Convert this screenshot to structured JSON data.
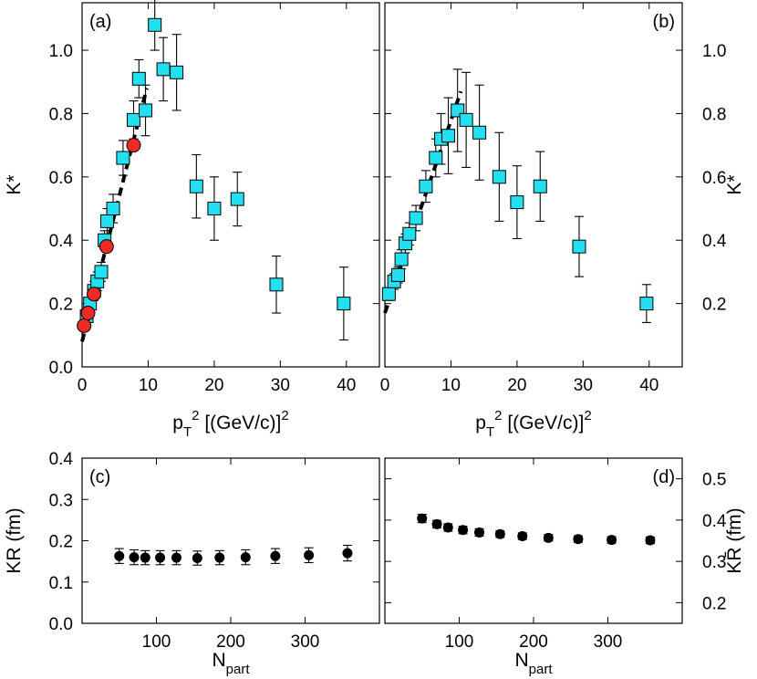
{
  "chart_data": [
    {
      "type": "scatter",
      "panel_label": "(a)",
      "xlabel_main": "p",
      "xlabel_sub": "T",
      "xlabel_sup": "2",
      "xlabel_rest": " [(GeV/c)]",
      "xlabel_sup2": "2",
      "ylabel": "K*",
      "xlim": [
        0,
        45
      ],
      "ylim": [
        0,
        1.15
      ],
      "xticks": [
        0,
        10,
        20,
        30,
        40
      ],
      "yticks": [
        0.0,
        0.2,
        0.4,
        0.6,
        0.8,
        1.0
      ],
      "ytick_labels": [
        "0.0",
        "0.2",
        "0.4",
        "0.6",
        "0.8",
        "1.0"
      ],
      "series": [
        {
          "name": "squares",
          "marker": "square",
          "color": "#22e0f0",
          "points": [
            {
              "x": 0.7,
              "y": 0.16,
              "err": 0.02
            },
            {
              "x": 1.2,
              "y": 0.2,
              "err": 0.02
            },
            {
              "x": 1.8,
              "y": 0.24,
              "err": 0.03
            },
            {
              "x": 2.3,
              "y": 0.27,
              "err": 0.03
            },
            {
              "x": 2.9,
              "y": 0.3,
              "err": 0.03
            },
            {
              "x": 3.4,
              "y": 0.4,
              "err": 0.03
            },
            {
              "x": 3.8,
              "y": 0.46,
              "err": 0.04
            },
            {
              "x": 4.7,
              "y": 0.5,
              "err": 0.045
            },
            {
              "x": 6.2,
              "y": 0.66,
              "err": 0.055
            },
            {
              "x": 7.8,
              "y": 0.78,
              "err": 0.06
            },
            {
              "x": 8.6,
              "y": 0.91,
              "err": 0.06
            },
            {
              "x": 9.6,
              "y": 0.81,
              "err": 0.08
            },
            {
              "x": 11.0,
              "y": 1.08,
              "err": 0.08
            },
            {
              "x": 12.3,
              "y": 0.94,
              "err": 0.1
            },
            {
              "x": 14.3,
              "y": 0.93,
              "err": 0.12
            },
            {
              "x": 17.3,
              "y": 0.57,
              "err": 0.1
            },
            {
              "x": 20.0,
              "y": 0.5,
              "err": 0.1
            },
            {
              "x": 23.5,
              "y": 0.53,
              "err": 0.085
            },
            {
              "x": 29.4,
              "y": 0.26,
              "err": 0.09
            },
            {
              "x": 39.6,
              "y": 0.2,
              "err": 0.115
            }
          ]
        },
        {
          "name": "circles",
          "marker": "circle",
          "color": "#ee2a24",
          "points": [
            {
              "x": 0.3,
              "y": 0.13,
              "err": 0
            },
            {
              "x": 0.9,
              "y": 0.17,
              "err": 0
            },
            {
              "x": 1.8,
              "y": 0.23,
              "err": 0
            },
            {
              "x": 3.7,
              "y": 0.38,
              "err": 0
            },
            {
              "x": 7.8,
              "y": 0.7,
              "err": 0
            }
          ]
        }
      ],
      "fit_line": {
        "x": [
          0,
          9.8
        ],
        "y": [
          0.08,
          0.88
        ]
      }
    },
    {
      "type": "scatter",
      "panel_label": "(b)",
      "xlabel_main": "p",
      "xlabel_sub": "T",
      "xlabel_sup": "2",
      "xlabel_rest": " [(GeV/c)]",
      "xlabel_sup2": "2",
      "ylabel": "K*",
      "xlim": [
        0,
        45
      ],
      "ylim": [
        0,
        1.15
      ],
      "xticks": [
        0,
        10,
        20,
        30,
        40
      ],
      "yticks": [
        0.2,
        0.4,
        0.6,
        0.8,
        1.0
      ],
      "ytick_labels": [
        "0.2",
        "0.4",
        "0.6",
        "0.8",
        "1.0"
      ],
      "series": [
        {
          "name": "squares",
          "marker": "square",
          "color": "#22e0f0",
          "points": [
            {
              "x": 0.6,
              "y": 0.23,
              "err": 0.02
            },
            {
              "x": 1.4,
              "y": 0.27,
              "err": 0.025
            },
            {
              "x": 2.0,
              "y": 0.29,
              "err": 0.025
            },
            {
              "x": 2.5,
              "y": 0.34,
              "err": 0.03
            },
            {
              "x": 3.1,
              "y": 0.39,
              "err": 0.03
            },
            {
              "x": 3.7,
              "y": 0.42,
              "err": 0.035
            },
            {
              "x": 4.7,
              "y": 0.47,
              "err": 0.04
            },
            {
              "x": 6.2,
              "y": 0.57,
              "err": 0.05
            },
            {
              "x": 7.7,
              "y": 0.66,
              "err": 0.06
            },
            {
              "x": 8.5,
              "y": 0.72,
              "err": 0.08
            },
            {
              "x": 9.6,
              "y": 0.73,
              "err": 0.12
            },
            {
              "x": 11.0,
              "y": 0.81,
              "err": 0.13
            },
            {
              "x": 12.3,
              "y": 0.78,
              "err": 0.15
            },
            {
              "x": 14.3,
              "y": 0.74,
              "err": 0.15
            },
            {
              "x": 17.3,
              "y": 0.6,
              "err": 0.14
            },
            {
              "x": 20.0,
              "y": 0.52,
              "err": 0.115
            },
            {
              "x": 23.5,
              "y": 0.57,
              "err": 0.11
            },
            {
              "x": 29.4,
              "y": 0.38,
              "err": 0.095
            },
            {
              "x": 39.6,
              "y": 0.2,
              "err": 0.06
            }
          ]
        }
      ],
      "fit_line": {
        "x": [
          0,
          11.5
        ],
        "y": [
          0.17,
          0.87
        ]
      }
    },
    {
      "type": "scatter",
      "panel_label": "(c)",
      "xlabel_main": "N",
      "xlabel_sub": "part",
      "ylabel": "KR (fm)",
      "xlim": [
        0,
        400
      ],
      "ylim": [
        0,
        0.4
      ],
      "xticks": [
        100,
        200,
        300
      ],
      "yticks": [
        0.0,
        0.1,
        0.2,
        0.3,
        0.4
      ],
      "ytick_labels": [
        "0.0",
        "0.1",
        "0.2",
        "0.3",
        "0.4"
      ],
      "series": [
        {
          "name": "points",
          "marker": "circle",
          "color": "#000000",
          "points": [
            {
              "x": 50,
              "y": 0.163,
              "err": 0.018
            },
            {
              "x": 70,
              "y": 0.16,
              "err": 0.018
            },
            {
              "x": 85,
              "y": 0.159,
              "err": 0.017
            },
            {
              "x": 105,
              "y": 0.159,
              "err": 0.017
            },
            {
              "x": 127,
              "y": 0.159,
              "err": 0.017
            },
            {
              "x": 155,
              "y": 0.158,
              "err": 0.017
            },
            {
              "x": 185,
              "y": 0.159,
              "err": 0.017
            },
            {
              "x": 220,
              "y": 0.16,
              "err": 0.018
            },
            {
              "x": 260,
              "y": 0.163,
              "err": 0.018
            },
            {
              "x": 305,
              "y": 0.165,
              "err": 0.018
            },
            {
              "x": 357,
              "y": 0.17,
              "err": 0.019
            }
          ]
        }
      ]
    },
    {
      "type": "scatter",
      "panel_label": "(d)",
      "xlabel_main": "N",
      "xlabel_sub": "part",
      "ylabel": "KR̄ (fm)",
      "xlim": [
        0,
        400
      ],
      "ylim": [
        0.15,
        0.55
      ],
      "xticks": [
        100,
        200,
        300
      ],
      "yticks": [
        0.2,
        0.3,
        0.4,
        0.5
      ],
      "ytick_labels": [
        "0.2",
        "0.3",
        "0.4",
        "0.5"
      ],
      "series": [
        {
          "name": "points",
          "marker": "circle",
          "color": "#000000",
          "points": [
            {
              "x": 50,
              "y": 0.404,
              "err": 0.01
            },
            {
              "x": 70,
              "y": 0.39,
              "err": 0.009
            },
            {
              "x": 85,
              "y": 0.382,
              "err": 0.009
            },
            {
              "x": 105,
              "y": 0.376,
              "err": 0.009
            },
            {
              "x": 127,
              "y": 0.37,
              "err": 0.009
            },
            {
              "x": 155,
              "y": 0.366,
              "err": 0.008
            },
            {
              "x": 185,
              "y": 0.361,
              "err": 0.008
            },
            {
              "x": 220,
              "y": 0.357,
              "err": 0.008
            },
            {
              "x": 260,
              "y": 0.354,
              "err": 0.008
            },
            {
              "x": 305,
              "y": 0.352,
              "err": 0.008
            },
            {
              "x": 357,
              "y": 0.351,
              "err": 0.008
            }
          ]
        }
      ]
    }
  ]
}
